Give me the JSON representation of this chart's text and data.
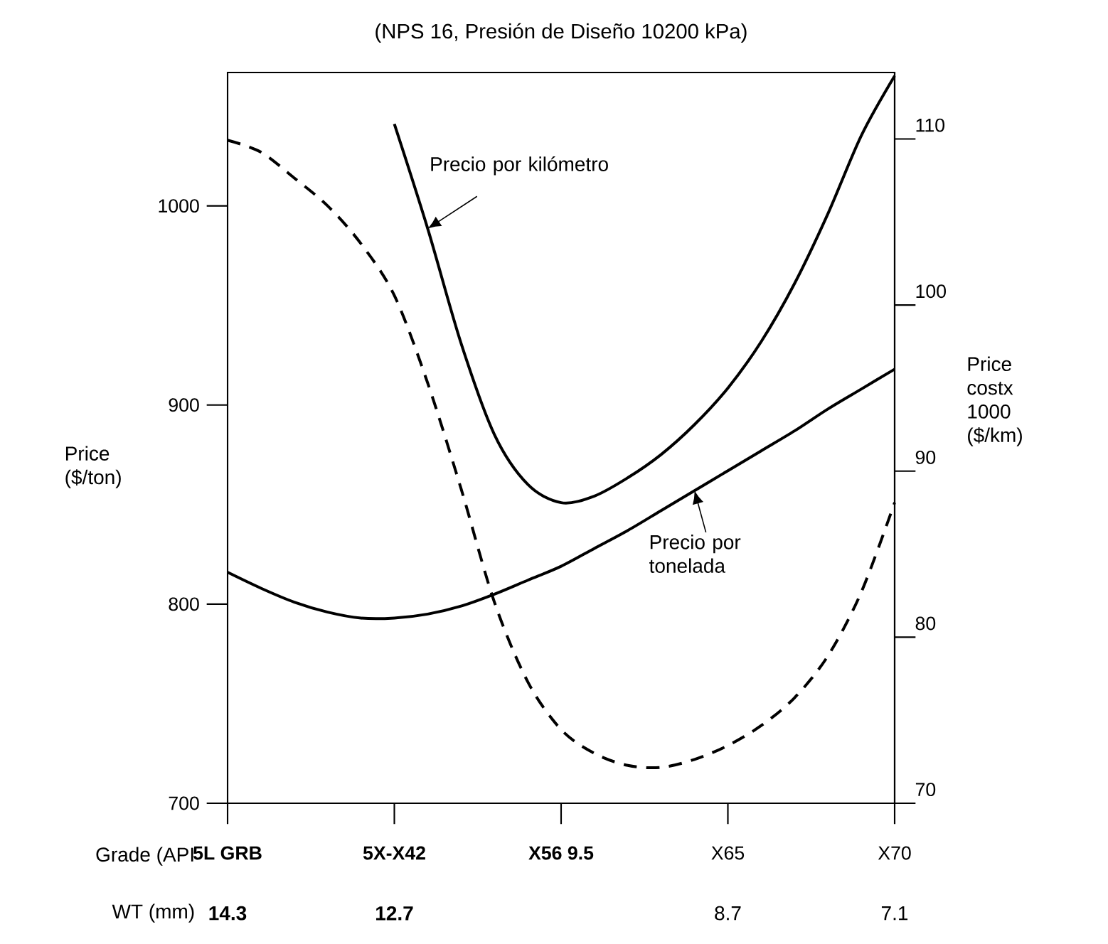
{
  "chart_data": {
    "type": "line",
    "title": "(NPS 16, Presión de Diseño 10200 kPa)",
    "xlabel": "Grade (API",
    "ylabel": "Price ($/ton)",
    "y2label": "Price costx 1000 ($/km)",
    "categories": [
      "**5L GRB**",
      null,
      null,
      null,
      null,
      "**5X-X42**",
      null,
      null,
      null,
      null,
      "**X56 9.5**",
      null,
      null,
      null,
      null,
      "X65",
      null,
      null,
      null,
      null,
      "X70"
    ],
    "ylim": [
      700,
      1067
    ],
    "yticks": [
      700,
      800,
      900,
      1000
    ],
    "y2lim": [
      70,
      114
    ],
    "y2ticks": [
      70,
      80,
      90,
      100,
      110
    ],
    "annotations": [
      "WT (mm)",
      "**14.3**",
      "**12.7**",
      "8.7",
      "7.1"
    ],
    "series": [
      {
        "name": "Precio por kilómetro",
        "color": "#000000",
        "axis": "y2",
        "line_style": "solid",
        "values": [
          null,
          null,
          null,
          null,
          null,
          110.9,
          104.6,
          97.7,
          92.2,
          89.2,
          88.1,
          88.5,
          89.6,
          91.0,
          92.8,
          95.0,
          97.8,
          101.3,
          105.5,
          110.2,
          113.8
        ]
      },
      {
        "name": "Precio por tonelada",
        "color": "#000000",
        "axis": "y",
        "line_style": "solid",
        "values": [
          816,
          808,
          801,
          796,
          793,
          793,
          795,
          799,
          805,
          812,
          819,
          828,
          837,
          847,
          857,
          867,
          877,
          887,
          898,
          908,
          918
        ]
      },
      {
        "color": "#000000",
        "axis": "y",
        "line_style": "dashed",
        "values": [
          1033,
          1027,
          1014,
          1000,
          981,
          955,
          911,
          858,
          801,
          761,
          737,
          725,
          719,
          718,
          722,
          729,
          739,
          753,
          774,
          806,
          851
        ]
      }
    ]
  }
}
